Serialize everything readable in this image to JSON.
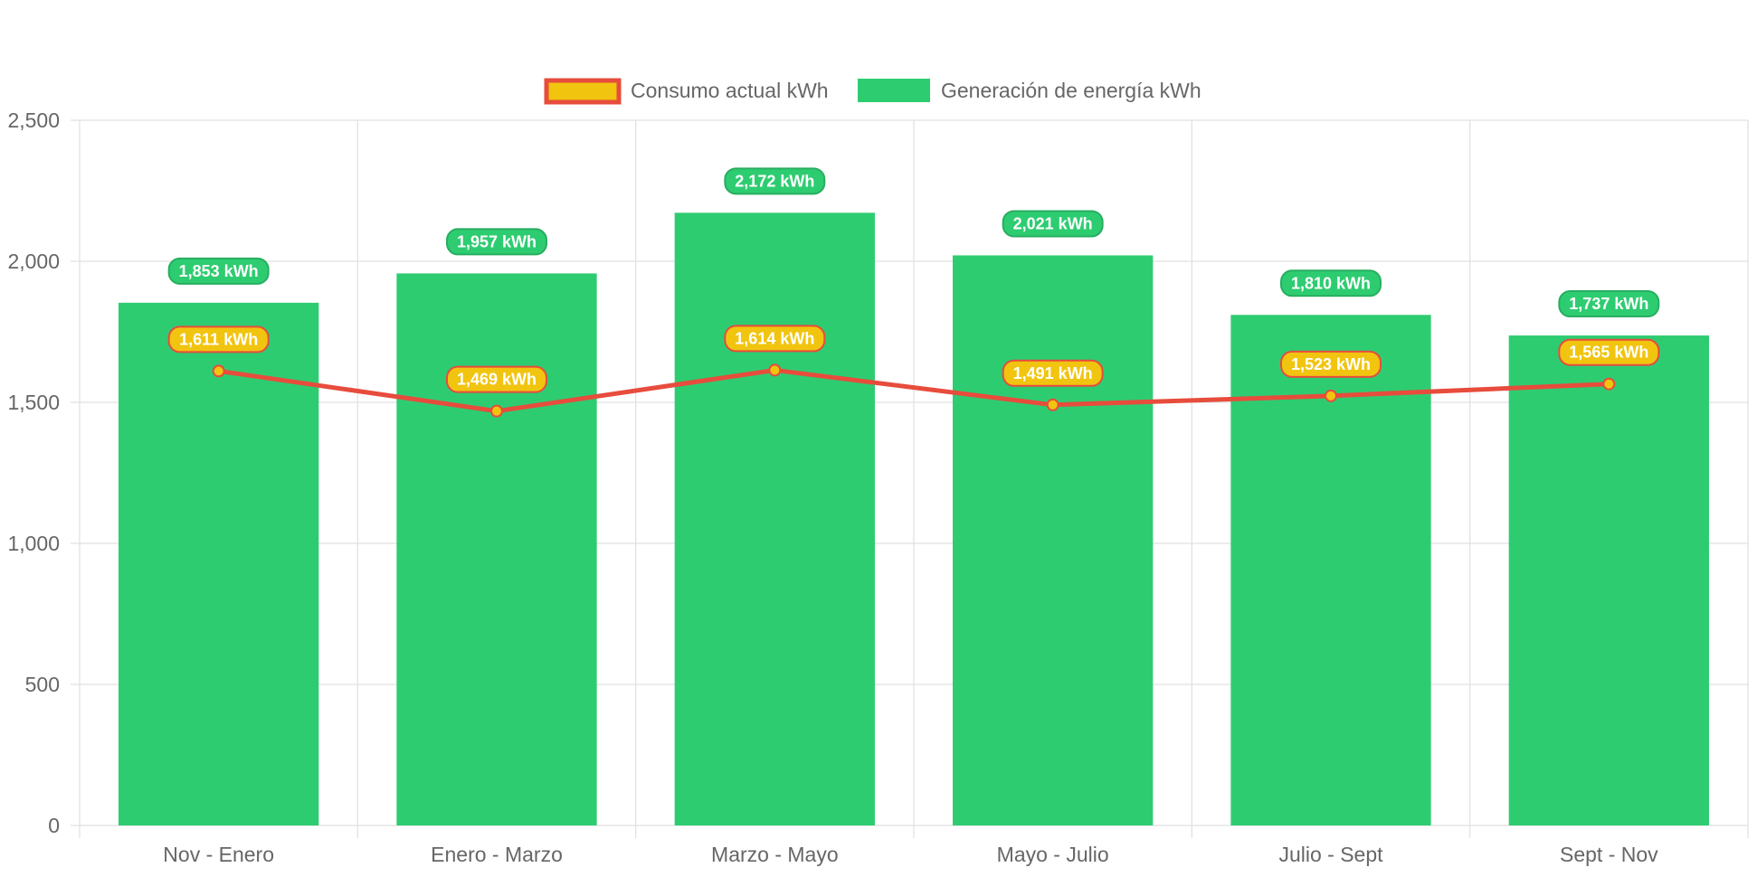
{
  "chart_data": {
    "type": "bar",
    "categories": [
      "Nov - Enero",
      "Enero - Marzo",
      "Marzo - Mayo",
      "Mayo - Julio",
      "Julio - Sept",
      "Sept - Nov"
    ],
    "series": [
      {
        "name": "Consumo actual kWh",
        "type": "line",
        "values": [
          1611,
          1469,
          1614,
          1491,
          1523,
          1565
        ],
        "labels": [
          "1,611 kWh",
          "1,469 kWh",
          "1,614 kWh",
          "1,491 kWh",
          "1,523 kWh",
          "1,565 kWh"
        ],
        "line_color": "#e74c3c",
        "fill_color": "#f1c40f"
      },
      {
        "name": "Generación de energía kWh",
        "type": "bar",
        "values": [
          1853,
          1957,
          2172,
          2021,
          1810,
          1737
        ],
        "labels": [
          "1,853 kWh",
          "1,957 kWh",
          "2,172 kWh",
          "2,021 kWh",
          "1,810 kWh",
          "1,737 kWh"
        ],
        "color": "#2ecc71",
        "label_border_color": "#27ae60"
      }
    ],
    "ylim": [
      0,
      2500
    ],
    "yticks": [
      {
        "value": 0,
        "label": "0"
      },
      {
        "value": 500,
        "label": "500"
      },
      {
        "value": 1000,
        "label": "1,000"
      },
      {
        "value": 1500,
        "label": "1,500"
      },
      {
        "value": 2000,
        "label": "2,000"
      },
      {
        "value": 2500,
        "label": "2,500"
      }
    ],
    "title": "",
    "xlabel": "",
    "ylabel": "",
    "grid": true,
    "legend_position": "top",
    "grid_color": "#e0e0e0",
    "axis_text_color": "#666666"
  }
}
